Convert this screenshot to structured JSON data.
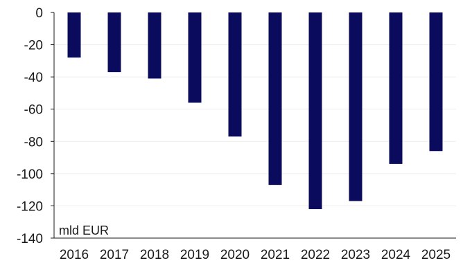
{
  "chart_data": {
    "type": "bar",
    "title": "",
    "xlabel": "",
    "ylabel": "",
    "unit_label": "mld EUR",
    "categories": [
      "2016",
      "2017",
      "2018",
      "2019",
      "2020",
      "2021",
      "2022",
      "2023",
      "2024",
      "2025"
    ],
    "values": [
      -28,
      -37,
      -41,
      -56,
      -77,
      -107,
      -122,
      -117,
      -94,
      -86
    ],
    "ylim": [
      -140,
      0
    ],
    "yticks": [
      0,
      -20,
      -40,
      -60,
      -80,
      -100,
      -120,
      -140
    ],
    "ytick_labels": [
      "0",
      "-20",
      "-40",
      "-60",
      "-80",
      "-100",
      "-120",
      "-140"
    ],
    "grid": true,
    "legend": "none",
    "colors": {
      "bar": "#0b0b5e",
      "axis": "#1a1a1a",
      "grid": "#ededed"
    }
  }
}
